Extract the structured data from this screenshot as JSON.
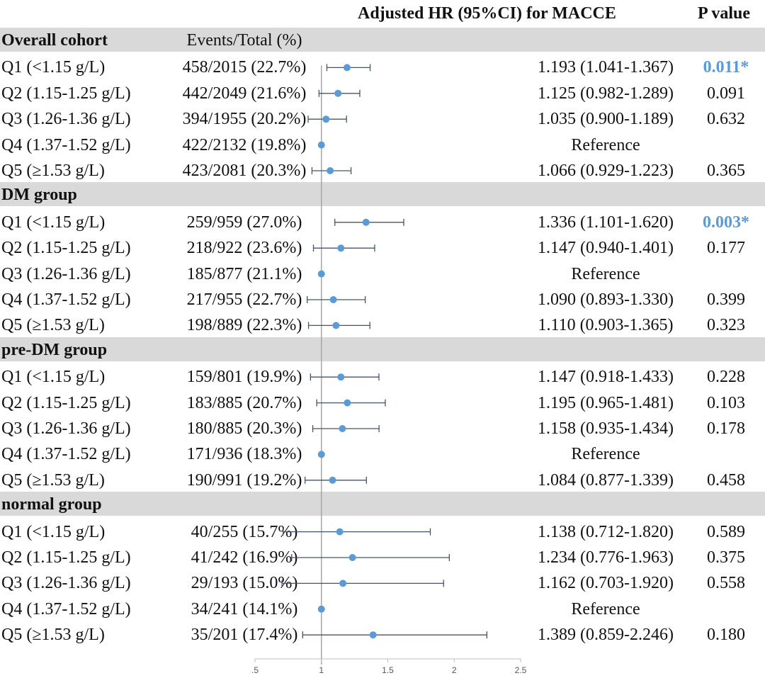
{
  "header": {
    "hr_label": "Adjusted HR (95%CI) for MACCE",
    "p_label": "P value",
    "events_label": "Events/Total (%)"
  },
  "groups": [
    {
      "name": "Overall cohort",
      "rows": [
        {
          "label": "Q1 (<1.15 g/L)",
          "events": "458/2015 (22.7%)",
          "hr": 1.193,
          "lo": 1.041,
          "hi": 1.367,
          "hr_text": "1.193 (1.041-1.367)",
          "p": "0.011*",
          "sig": true
        },
        {
          "label": "Q2 (1.15-1.25 g/L)",
          "events": "442/2049 (21.6%)",
          "hr": 1.125,
          "lo": 0.982,
          "hi": 1.289,
          "hr_text": "1.125 (0.982-1.289)",
          "p": "0.091",
          "sig": false
        },
        {
          "label": "Q3 (1.26-1.36 g/L)",
          "events": "394/1955 (20.2%)",
          "hr": 1.035,
          "lo": 0.9,
          "hi": 1.189,
          "hr_text": "1.035 (0.900-1.189)",
          "p": "0.632",
          "sig": false
        },
        {
          "label": "Q4 (1.37-1.52 g/L)",
          "events": "422/2132 (19.8%)",
          "hr": 1,
          "lo": null,
          "hi": null,
          "hr_text": "Reference",
          "p": "",
          "sig": false
        },
        {
          "label": "Q5 (≥1.53 g/L)",
          "events": "423/2081 (20.3%)",
          "hr": 1.066,
          "lo": 0.929,
          "hi": 1.223,
          "hr_text": "1.066 (0.929-1.223)",
          "p": "0.365",
          "sig": false
        }
      ]
    },
    {
      "name": "DM group",
      "rows": [
        {
          "label": "Q1 (<1.15 g/L)",
          "events": "259/959 (27.0%)",
          "hr": 1.336,
          "lo": 1.101,
          "hi": 1.62,
          "hr_text": "1.336 (1.101-1.620)",
          "p": "0.003*",
          "sig": true
        },
        {
          "label": "Q2 (1.15-1.25 g/L)",
          "events": "218/922 (23.6%)",
          "hr": 1.147,
          "lo": 0.94,
          "hi": 1.401,
          "hr_text": "1.147 (0.940-1.401)",
          "p": "0.177",
          "sig": false
        },
        {
          "label": "Q3 (1.26-1.36 g/L)",
          "events": "185/877 (21.1%)",
          "hr": 1,
          "lo": null,
          "hi": null,
          "hr_text": "Reference",
          "p": "",
          "sig": false
        },
        {
          "label": "Q4 (1.37-1.52 g/L)",
          "events": "217/955 (22.7%)",
          "hr": 1.09,
          "lo": 0.893,
          "hi": 1.33,
          "hr_text": "1.090 (0.893-1.330)",
          "p": "0.399",
          "sig": false
        },
        {
          "label": "Q5 (≥1.53 g/L)",
          "events": "198/889 (22.3%)",
          "hr": 1.11,
          "lo": 0.903,
          "hi": 1.365,
          "hr_text": "1.110 (0.903-1.365)",
          "p": "0.323",
          "sig": false
        }
      ]
    },
    {
      "name": "pre-DM group",
      "rows": [
        {
          "label": "Q1 (<1.15 g/L)",
          "events": "159/801 (19.9%)",
          "hr": 1.147,
          "lo": 0.918,
          "hi": 1.433,
          "hr_text": "1.147 (0.918-1.433)",
          "p": "0.228",
          "sig": false
        },
        {
          "label": "Q2 (1.15-1.25 g/L)",
          "events": "183/885 (20.7%)",
          "hr": 1.195,
          "lo": 0.965,
          "hi": 1.481,
          "hr_text": "1.195 (0.965-1.481)",
          "p": "0.103",
          "sig": false
        },
        {
          "label": "Q3 (1.26-1.36 g/L)",
          "events": "180/885 (20.3%)",
          "hr": 1.158,
          "lo": 0.935,
          "hi": 1.434,
          "hr_text": "1.158 (0.935-1.434)",
          "p": "0.178",
          "sig": false
        },
        {
          "label": "Q4 (1.37-1.52 g/L)",
          "events": "171/936 (18.3%)",
          "hr": 1,
          "lo": null,
          "hi": null,
          "hr_text": "Reference",
          "p": "",
          "sig": false
        },
        {
          "label": "Q5 (≥1.53 g/L)",
          "events": "190/991 (19.2%)",
          "hr": 1.084,
          "lo": 0.877,
          "hi": 1.339,
          "hr_text": "1.084 (0.877-1.339)",
          "p": "0.458",
          "sig": false
        }
      ]
    },
    {
      "name": "normal group",
      "rows": [
        {
          "label": "Q1 (<1.15 g/L)",
          "events": "40/255 (15.7%)",
          "hr": 1.138,
          "lo": 0.712,
          "hi": 1.82,
          "hr_text": "1.138 (0.712-1.820)",
          "p": "0.589",
          "sig": false
        },
        {
          "label": "Q2 (1.15-1.25 g/L)",
          "events": "41/242 (16.9%)",
          "hr": 1.234,
          "lo": 0.776,
          "hi": 1.963,
          "hr_text": "1.234 (0.776-1.963)",
          "p": "0.375",
          "sig": false
        },
        {
          "label": "Q3 (1.26-1.36 g/L)",
          "events": "29/193 (15.0%)",
          "hr": 1.162,
          "lo": 0.703,
          "hi": 1.92,
          "hr_text": "1.162 (0.703-1.920)",
          "p": "0.558",
          "sig": false
        },
        {
          "label": "Q4 (1.37-1.52 g/L)",
          "events": "34/241 (14.1%)",
          "hr": 1,
          "lo": null,
          "hi": null,
          "hr_text": "Reference",
          "p": "",
          "sig": false
        },
        {
          "label": "Q5 (≥1.53 g/L)",
          "events": "35/201 (17.4%)",
          "hr": 1.389,
          "lo": 0.859,
          "hi": 2.246,
          "hr_text": "1.389 (0.859-2.246)",
          "p": "0.180",
          "sig": false
        }
      ]
    }
  ],
  "chart_data": {
    "type": "forest",
    "x_ticks": [
      0.5,
      1,
      1.5,
      2,
      2.5
    ],
    "x_tick_labels": [
      ".5",
      "1",
      "1.5",
      "2",
      "2.5"
    ],
    "xlim": [
      0.5,
      2.5
    ],
    "reference_line": 1,
    "point_color": "#5b9bd5",
    "ci_color": "#44546a",
    "significant_color": "#5b9bd5"
  }
}
